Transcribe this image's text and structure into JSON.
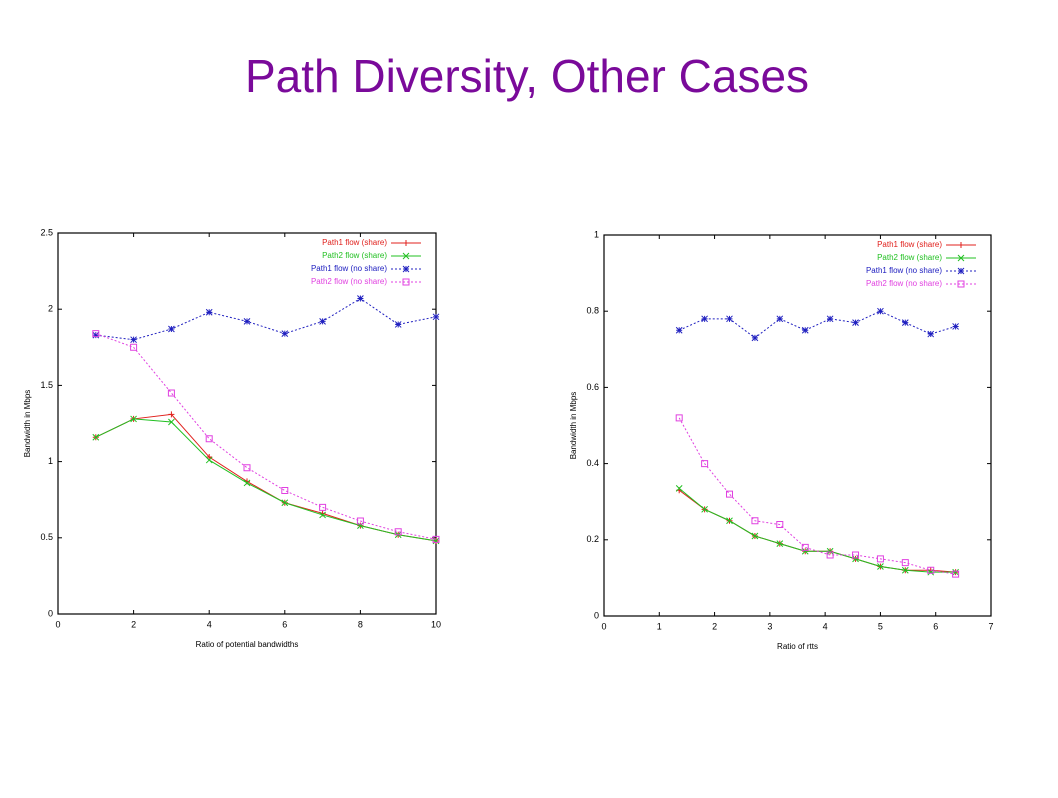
{
  "title": "Path Diversity, Other Cases",
  "chart_data": [
    {
      "type": "line",
      "xlabel": "Ratio of potential bandwidths",
      "ylabel": "Bandwidth in Mbps",
      "x": [
        1,
        2,
        3,
        4,
        5,
        6,
        7,
        8,
        9,
        10
      ],
      "xlim": [
        0,
        10
      ],
      "xticks": [
        0,
        2,
        4,
        6,
        8,
        10
      ],
      "ylim": [
        0,
        2.5
      ],
      "yticks": [
        0,
        0.5,
        1,
        1.5,
        2,
        2.5
      ],
      "legend": "upper right",
      "series": [
        {
          "name": "Path1 flow (share)",
          "color": "#e0201c",
          "marker": "plus",
          "values": [
            1.16,
            1.28,
            1.31,
            1.03,
            0.87,
            0.73,
            0.66,
            0.58,
            0.52,
            0.48
          ]
        },
        {
          "name": "Path2 flow (share)",
          "color": "#22c022",
          "marker": "cross",
          "values": [
            1.16,
            1.28,
            1.26,
            1.01,
            0.86,
            0.73,
            0.65,
            0.58,
            0.52,
            0.48
          ]
        },
        {
          "name": "Path1 flow (no share)",
          "color": "#2020c0",
          "marker": "star",
          "values": [
            1.83,
            1.8,
            1.87,
            1.98,
            1.92,
            1.84,
            1.92,
            2.07,
            1.9,
            1.95
          ]
        },
        {
          "name": "Path2 flow (no share)",
          "color": "#e040e0",
          "marker": "square",
          "values": [
            1.84,
            1.75,
            1.45,
            1.15,
            0.96,
            0.81,
            0.7,
            0.61,
            0.54,
            0.49
          ]
        }
      ]
    },
    {
      "type": "line",
      "xlabel": "Ratio of rtts",
      "ylabel": "Bandwidth in Mbps",
      "x": [
        1.36,
        1.82,
        2.27,
        2.73,
        3.18,
        3.64,
        4.09,
        4.55,
        5,
        5.45,
        5.91,
        6.36
      ],
      "xlim": [
        0,
        7
      ],
      "xticks": [
        0,
        1,
        2,
        3,
        4,
        5,
        6,
        7
      ],
      "ylim": [
        0,
        1
      ],
      "yticks": [
        0,
        0.2,
        0.4,
        0.6,
        0.8,
        1
      ],
      "legend": "upper right",
      "series": [
        {
          "name": "Path1 flow (share)",
          "color": "#e0201c",
          "marker": "plus",
          "values": [
            0.33,
            0.28,
            0.25,
            0.21,
            0.19,
            0.17,
            0.17,
            0.15,
            0.13,
            0.12,
            0.12,
            0.115
          ]
        },
        {
          "name": "Path2 flow (share)",
          "color": "#22c022",
          "marker": "cross",
          "values": [
            0.335,
            0.28,
            0.25,
            0.21,
            0.19,
            0.17,
            0.17,
            0.15,
            0.13,
            0.12,
            0.115,
            0.115
          ]
        },
        {
          "name": "Path1 flow (no share)",
          "color": "#2020c0",
          "marker": "star",
          "values": [
            0.75,
            0.78,
            0.78,
            0.73,
            0.78,
            0.75,
            0.78,
            0.77,
            0.8,
            0.77,
            0.74,
            0.76
          ]
        },
        {
          "name": "Path2 flow (no share)",
          "color": "#e040e0",
          "marker": "square",
          "values": [
            0.52,
            0.4,
            0.32,
            0.25,
            0.24,
            0.18,
            0.16,
            0.16,
            0.15,
            0.14,
            0.12,
            0.11
          ]
        }
      ]
    }
  ]
}
